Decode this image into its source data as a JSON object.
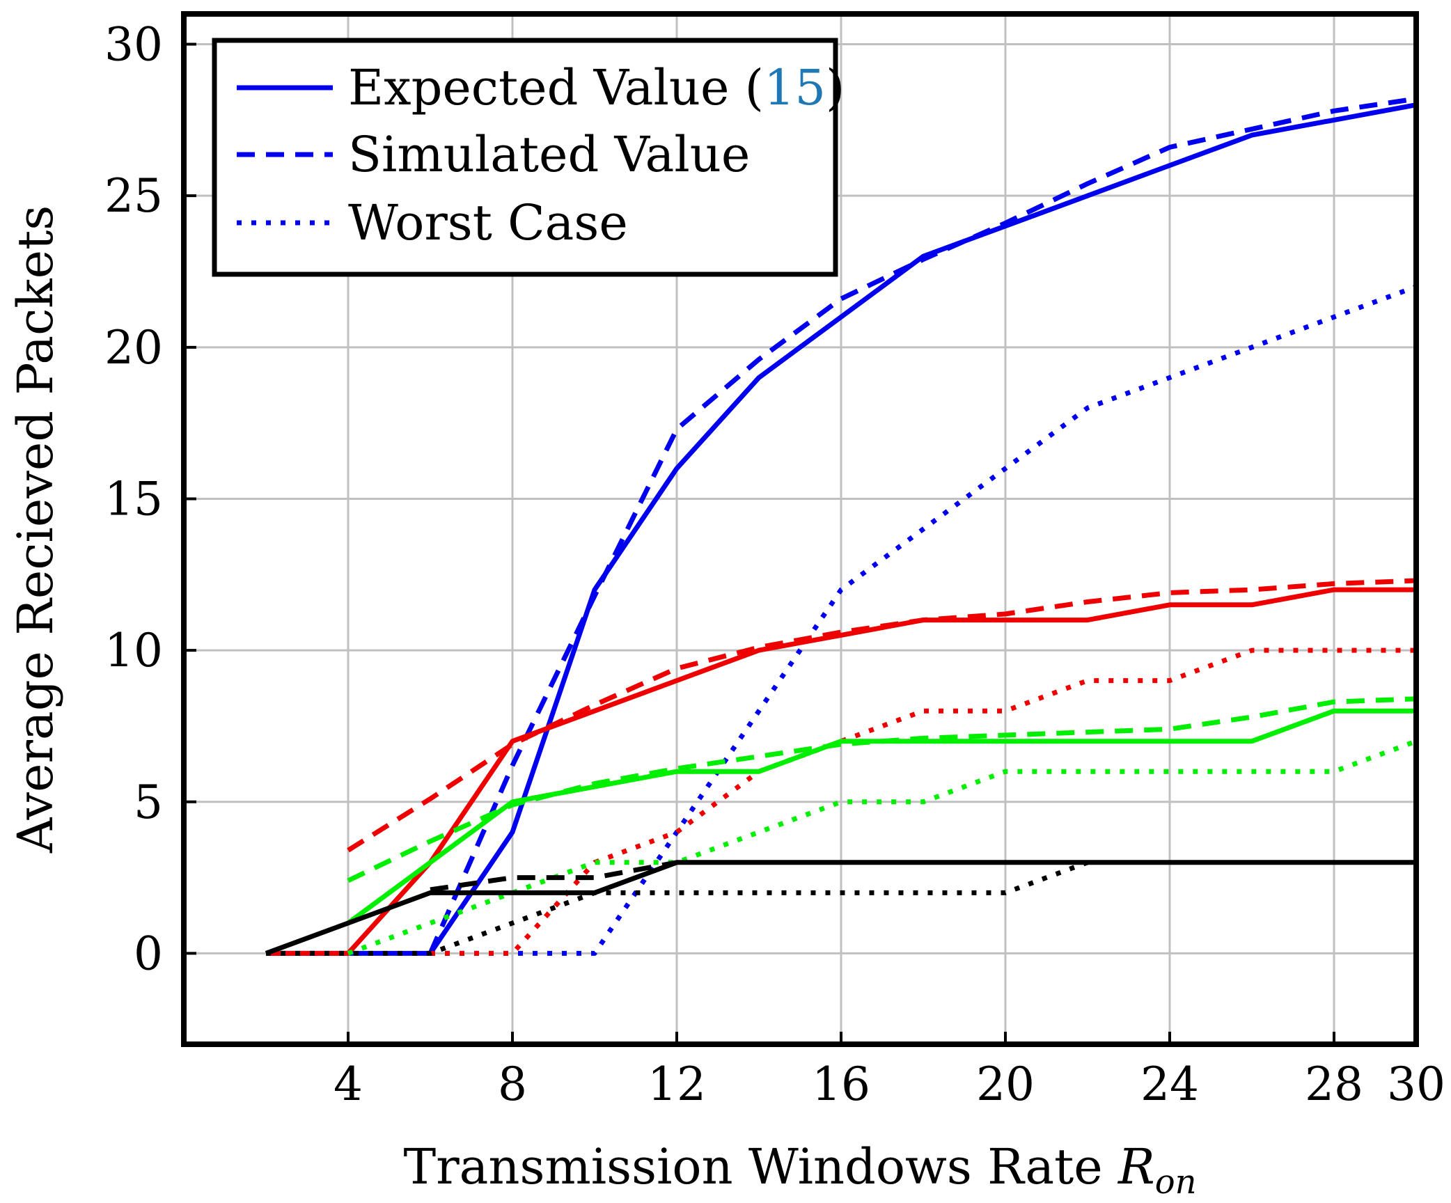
{
  "chart_data": {
    "type": "line",
    "title": "",
    "xlabel": "Transmission Windows Rate",
    "xlabel_symbol": "R",
    "xlabel_subscript": "on",
    "ylabel": "Average Recieved Packets",
    "xlim": [
      0,
      30
    ],
    "ylim": [
      -3,
      31
    ],
    "x_ticks": [
      4,
      8,
      12,
      16,
      20,
      24,
      28,
      30
    ],
    "y_ticks": [
      0,
      5,
      10,
      15,
      20,
      25,
      30
    ],
    "grid": true,
    "legend": {
      "position": "top-left",
      "entries": [
        {
          "label": "Expected Value (",
          "ref": "15",
          "close": ")",
          "style": "solid"
        },
        {
          "label": "Simulated Value",
          "style": "dashed"
        },
        {
          "label": "Worst Case",
          "style": "dotted"
        }
      ],
      "ref_color": "#1f77b4",
      "sample_color": "#0000ee"
    },
    "series": [
      {
        "name": "Blue - Expected",
        "color": "#0000ee",
        "style": "solid",
        "x": [
          2,
          4,
          6,
          8,
          10,
          12,
          14,
          16,
          18,
          20,
          22,
          24,
          26,
          28,
          30
        ],
        "y": [
          0,
          0,
          0,
          4,
          12,
          16,
          19,
          21,
          23,
          24,
          25,
          26,
          27,
          27.5,
          28
        ]
      },
      {
        "name": "Blue - Simulated",
        "color": "#0000ee",
        "style": "dashed",
        "x": [
          6,
          8,
          10,
          12,
          14,
          16,
          18,
          20,
          22,
          24,
          26,
          28,
          30
        ],
        "y": [
          0,
          6.2,
          11.8,
          17.3,
          19.6,
          21.6,
          22.9,
          24.1,
          25.4,
          26.6,
          27.2,
          27.8,
          28.2
        ]
      },
      {
        "name": "Blue - Worst Case",
        "color": "#0000ee",
        "style": "dotted",
        "x": [
          6,
          8,
          10,
          12,
          14,
          16,
          18,
          20,
          22,
          24,
          26,
          28,
          30
        ],
        "y": [
          0,
          0,
          0,
          4,
          8,
          12,
          14,
          16,
          18,
          19,
          20,
          21,
          22
        ]
      },
      {
        "name": "Red - Expected",
        "color": "#ee0000",
        "style": "solid",
        "x": [
          2,
          4,
          6,
          8,
          10,
          12,
          14,
          16,
          18,
          20,
          22,
          24,
          26,
          28,
          30
        ],
        "y": [
          0,
          0,
          3,
          7,
          8,
          9,
          10,
          10.5,
          11,
          11,
          11,
          11.5,
          11.5,
          12,
          12
        ]
      },
      {
        "name": "Red - Simulated",
        "color": "#ee0000",
        "style": "dashed",
        "x": [
          4,
          6,
          8,
          10,
          12,
          14,
          16,
          18,
          20,
          22,
          24,
          26,
          28,
          30
        ],
        "y": [
          3.4,
          5.1,
          6.9,
          8.2,
          9.4,
          10.1,
          10.6,
          11.0,
          11.2,
          11.6,
          11.9,
          12.0,
          12.2,
          12.3
        ]
      },
      {
        "name": "Red - Worst Case",
        "color": "#ee0000",
        "style": "dotted",
        "x": [
          6,
          8,
          10,
          12,
          14,
          16,
          18,
          20,
          22,
          24,
          26,
          28,
          30
        ],
        "y": [
          0,
          0,
          3,
          4,
          6,
          7,
          8,
          8,
          9,
          9,
          10,
          10,
          10
        ]
      },
      {
        "name": "Green - Expected",
        "color": "#00ee00",
        "style": "solid",
        "x": [
          4,
          6,
          8,
          10,
          12,
          14,
          16,
          18,
          20,
          22,
          24,
          26,
          28,
          30
        ],
        "y": [
          1,
          3,
          5,
          5.5,
          6,
          6,
          7,
          7,
          7,
          7,
          7,
          7,
          8,
          8
        ]
      },
      {
        "name": "Green - Simulated",
        "color": "#00ee00",
        "style": "dashed",
        "x": [
          4,
          6,
          8,
          10,
          12,
          14,
          16,
          18,
          20,
          22,
          24,
          26,
          28,
          30
        ],
        "y": [
          2.4,
          3.7,
          4.9,
          5.6,
          6.1,
          6.5,
          6.9,
          7.1,
          7.2,
          7.3,
          7.4,
          7.8,
          8.3,
          8.4
        ]
      },
      {
        "name": "Green - Worst Case",
        "color": "#00ee00",
        "style": "dotted",
        "x": [
          4,
          6,
          8,
          10,
          12,
          14,
          16,
          18,
          20,
          22,
          24,
          26,
          28,
          30
        ],
        "y": [
          0,
          1,
          2,
          3,
          3,
          4,
          5,
          5,
          6,
          6,
          6,
          6,
          6,
          7
        ]
      },
      {
        "name": "Black - Expected",
        "color": "#000000",
        "style": "solid",
        "x": [
          2,
          4,
          6,
          8,
          10,
          12,
          14,
          16,
          18,
          20,
          22,
          24,
          26,
          28,
          30
        ],
        "y": [
          0,
          1,
          2,
          2,
          2,
          3,
          3,
          3,
          3,
          3,
          3,
          3,
          3,
          3,
          3
        ]
      },
      {
        "name": "Black - Simulated",
        "color": "#000000",
        "style": "dashed",
        "x": [
          6,
          8,
          10,
          12
        ],
        "y": [
          2.1,
          2.5,
          2.5,
          3.0
        ]
      },
      {
        "name": "Black - Worst Case",
        "color": "#000000",
        "style": "dotted",
        "x": [
          2,
          4,
          6,
          8,
          10,
          12,
          14,
          16,
          18,
          20,
          22
        ],
        "y": [
          0,
          0,
          0,
          1,
          2,
          2,
          2,
          2,
          2,
          2,
          3
        ]
      }
    ]
  }
}
